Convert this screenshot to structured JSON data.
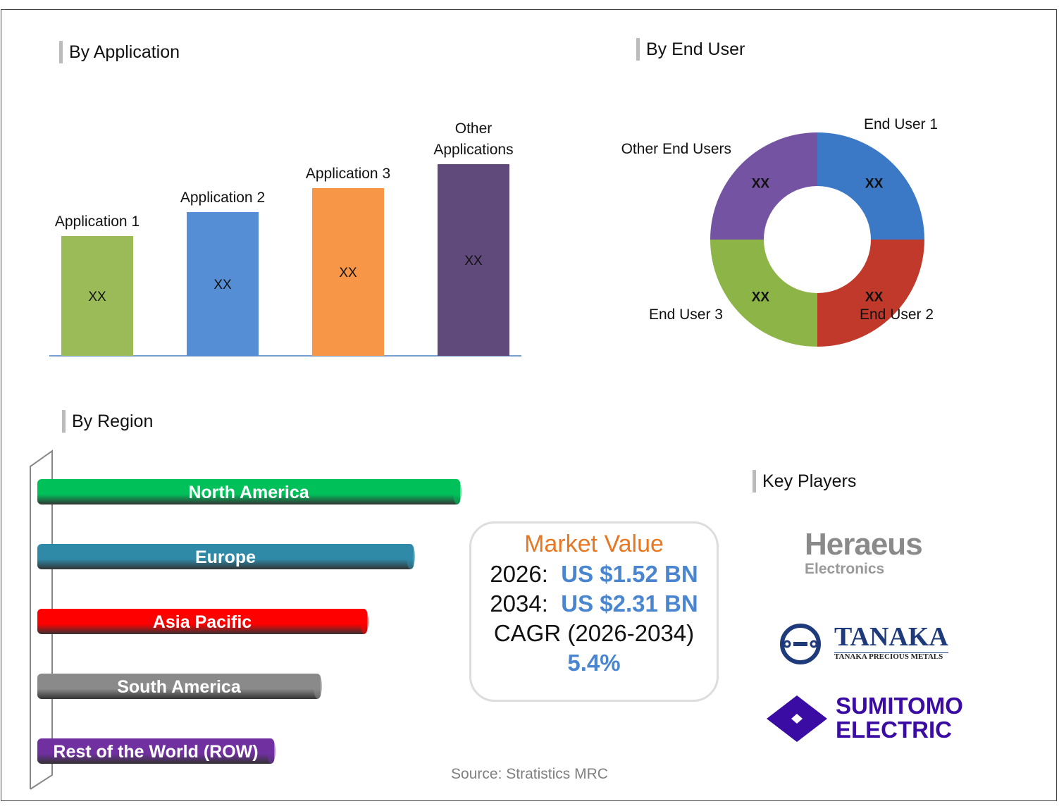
{
  "sections": {
    "application": "By Application",
    "end_user": "By End User",
    "region": "By Region",
    "key_players": "Key Players"
  },
  "chart_data": [
    {
      "type": "bar",
      "title": "By Application",
      "categories": [
        "Application 1",
        "Application 2",
        "Application 3",
        "Other Applications"
      ],
      "values": [
        50,
        60,
        70,
        80
      ],
      "data_labels": [
        "XX",
        "XX",
        "XX",
        "XX"
      ],
      "colors": [
        "#9bbb59",
        "#558ed5",
        "#f79646",
        "#604a7b"
      ]
    },
    {
      "type": "pie",
      "title": "By End User",
      "donut": true,
      "categories": [
        "End User 1",
        "End User 2",
        "End User 3",
        "Other End Users"
      ],
      "values": [
        25,
        25,
        25,
        25
      ],
      "data_labels": [
        "XX",
        "XX",
        "XX",
        "XX"
      ],
      "colors": [
        "#3b78c5",
        "#c0392b",
        "#8cb446",
        "#7453a2"
      ]
    },
    {
      "type": "bar",
      "orientation": "horizontal",
      "title": "By Region",
      "categories": [
        "North America",
        "Europe",
        "Asia Pacific",
        "South America",
        "Rest of the World (ROW)"
      ],
      "values": [
        100,
        89,
        78,
        67,
        56
      ],
      "colors": [
        "#00c05a",
        "#2f8aa8",
        "#ff0000",
        "#8a8a8a",
        "#7030a0"
      ]
    }
  ],
  "market": {
    "title": "Market Value",
    "y1": "2026:",
    "v1": "US $1.52 BN",
    "y2": "2034:",
    "v2": "US $2.31 BN",
    "cagr_label": "CAGR (2026-2034)",
    "cagr": "5.4%"
  },
  "players": [
    {
      "name": "Heraeus",
      "sub": "Electronics"
    },
    {
      "name": "TANAKA",
      "sub": "TANAKA PRECIOUS METALS"
    },
    {
      "name": "SUMITOMO",
      "sub": "ELECTRIC"
    }
  ],
  "source": "Source: Stratistics MRC"
}
